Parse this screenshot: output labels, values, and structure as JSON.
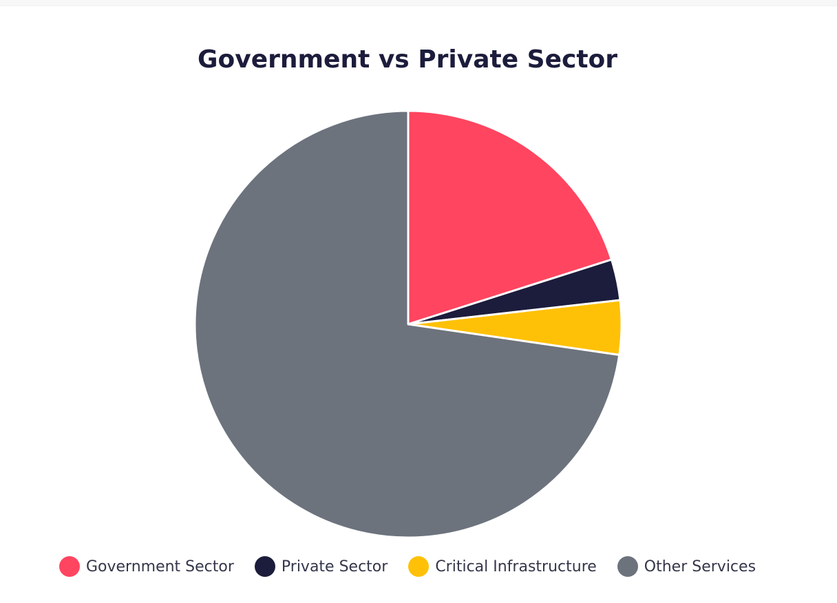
{
  "chart_data": {
    "type": "pie",
    "title": "Government vs Private Sector",
    "categories": [
      "Government Sector",
      "Private Sector",
      "Critical Infrastructure",
      "Other Services"
    ],
    "values": [
      20.1,
      3.1,
      4.1,
      72.7
    ],
    "colors": [
      "#ff4560",
      "#1c1c3c",
      "#ffc107",
      "#6c737d"
    ],
    "legend_position": "bottom",
    "start_angle": "top",
    "direction": "clockwise"
  }
}
